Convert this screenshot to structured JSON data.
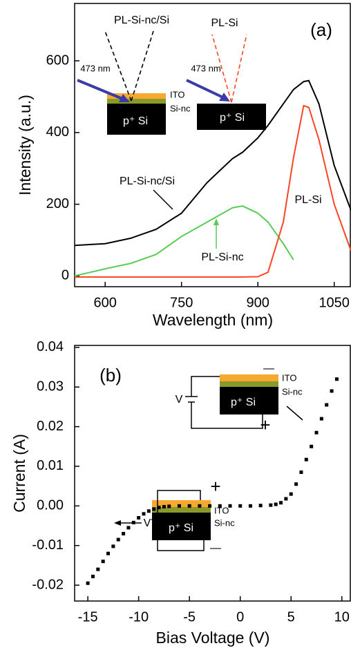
{
  "chart_data": [
    {
      "type": "line",
      "panel_label": "(a)",
      "x_label": "Wavelength (nm)",
      "y_label": "Intensity (a.u.)",
      "x": [
        540,
        600,
        650,
        700,
        750,
        800,
        850,
        870,
        900,
        920,
        950,
        970,
        990,
        1000,
        1020,
        1050,
        1083
      ],
      "series": [
        {
          "name": "PL-Si-nc/Si",
          "color": "#000000",
          "values": [
            85,
            90,
            105,
            130,
            175,
            260,
            327,
            345,
            385,
            420,
            480,
            520,
            542,
            545,
            480,
            308,
            183
          ]
        },
        {
          "name": "PL-Si-nc",
          "color": "#55cc55",
          "values": [
            0,
            20,
            35,
            60,
            110,
            150,
            190,
            195,
            175,
            150,
            90,
            45,
            null,
            null,
            null,
            null,
            null
          ]
        },
        {
          "name": "PL-Si",
          "color": "#ff4422",
          "values": [
            -3,
            -3,
            -3,
            -3,
            -3,
            -3,
            -3,
            -3,
            -2,
            10,
            150,
            330,
            475,
            470,
            380,
            200,
            70
          ]
        }
      ],
      "annotations": [
        "PL-Si-nc/Si",
        "473 nm",
        "ITO",
        "Si-nc",
        "p⁺ Si",
        "PL-Si",
        "473 nm",
        "p⁺ Si"
      ],
      "xlim": [
        540,
        1083
      ],
      "ylim": [
        -30,
        760
      ],
      "xticks": [
        600,
        750,
        900,
        1050
      ],
      "yticks": [
        0,
        200,
        400,
        600
      ]
    },
    {
      "type": "scatter",
      "panel_label": "(b)",
      "x_label": "Bias Voltage (V)",
      "y_label": "Current (A)",
      "color": "#000000",
      "x": [
        -15,
        -14.5,
        -14,
        -13.5,
        -13,
        -12.5,
        -12,
        -11.5,
        -11,
        -10.5,
        -10,
        -9.5,
        -9,
        -8.5,
        -8,
        -7.5,
        -7,
        -6,
        -5,
        -4,
        -3,
        -2,
        -1,
        0,
        1,
        2,
        3,
        3.5,
        4,
        4.5,
        5,
        5.5,
        6,
        6.5,
        7,
        7.5,
        8,
        8.5,
        9,
        9.5
      ],
      "values": [
        -0.0195,
        -0.0178,
        -0.016,
        -0.014,
        -0.012,
        -0.0102,
        -0.0085,
        -0.007,
        -0.0055,
        -0.0042,
        -0.003,
        -0.002,
        -0.0013,
        -0.0008,
        -0.0004,
        -0.0002,
        -0.0001,
        0,
        0,
        0,
        0,
        0,
        0,
        0,
        0,
        0.0001,
        0.0002,
        0.0004,
        0.0008,
        0.0018,
        0.003,
        0.0055,
        0.0085,
        0.0117,
        0.015,
        0.0185,
        0.022,
        0.0255,
        0.029,
        0.032
      ],
      "annotations": [
        "ITO",
        "Si-nc",
        "p⁺ Si",
        "V",
        "—",
        "+",
        "ITO",
        "Si-nc",
        "p⁺ Si",
        "V",
        "+",
        "—"
      ],
      "xlim": [
        -16.3,
        10.9
      ],
      "ylim": [
        -0.024,
        0.0405
      ],
      "xticks": [
        -15,
        -10,
        -5,
        0,
        5,
        10
      ],
      "yticks": [
        0.04,
        0.03,
        0.02,
        0.01,
        {
          "value": 0,
          "label": "0.00"
        },
        -0.01,
        -0.02
      ]
    }
  ]
}
